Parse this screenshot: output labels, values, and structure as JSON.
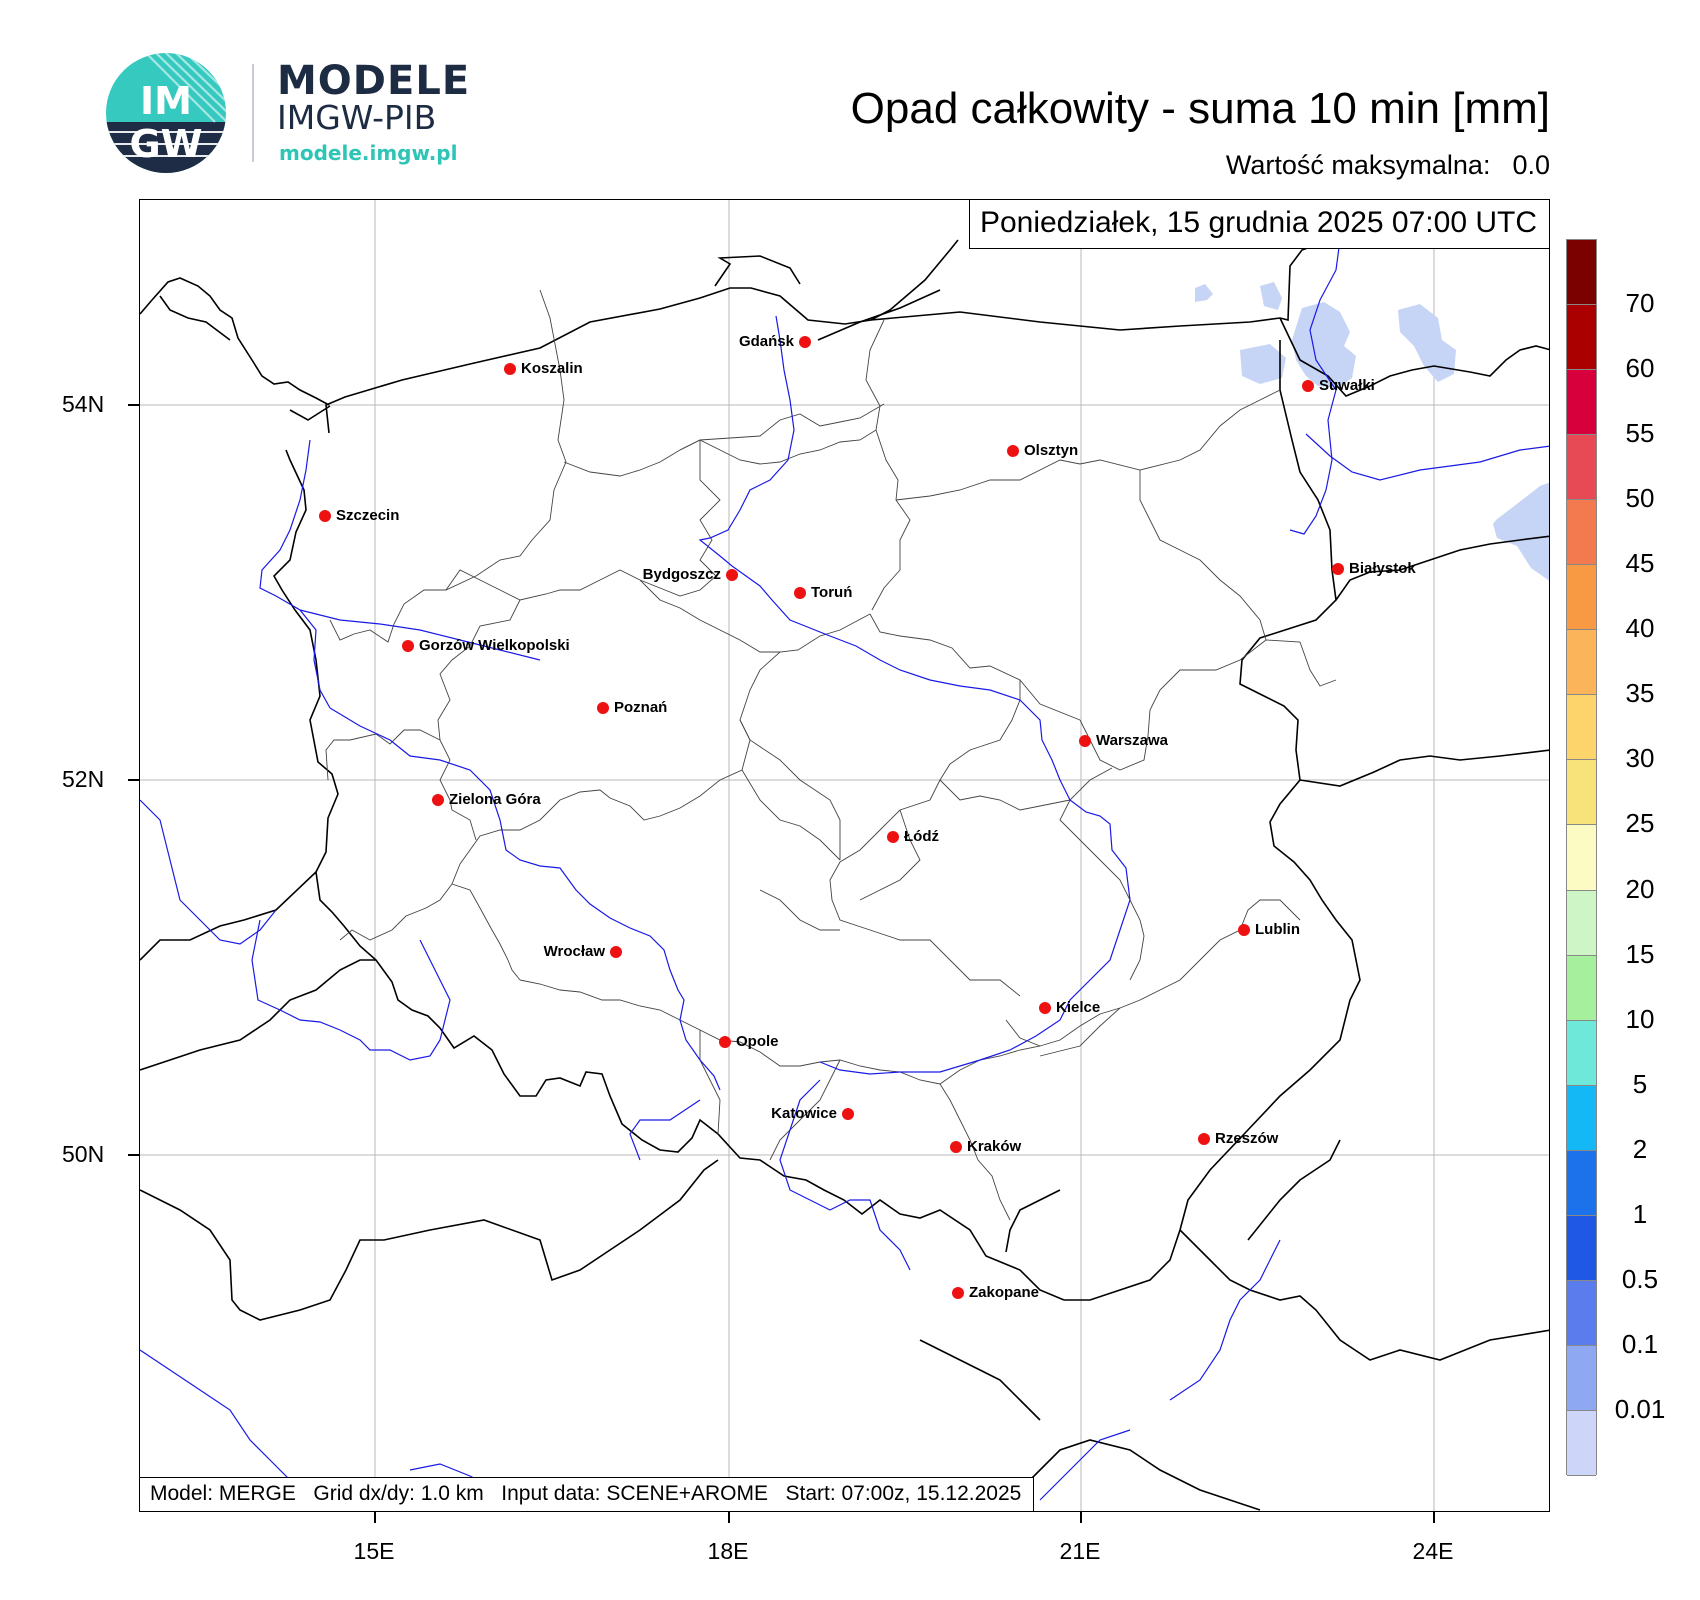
{
  "header": {
    "logo_text_top": "IM",
    "logo_text_bottom": "GW",
    "brand_title": "MODELE",
    "brand_subtitle": "IMGW-PIB",
    "brand_url": "modele.imgw.pl",
    "map_title": "Opad całkowity - suma 10 min [mm]",
    "max_label": "Wartość maksymalna:",
    "max_value": "0.0"
  },
  "map": {
    "date_time": "Poniedziałek, 15 grudnia 2025 07:00 UTC",
    "info": "Model: MERGE   Grid dx/dy: 1.0 km   Input data: SCENE+AROME   Start: 07:00z, 15.12.2025",
    "lat_labels": [
      "54N",
      "52N",
      "50N"
    ],
    "lon_labels": [
      "15E",
      "18E",
      "21E",
      "24E"
    ],
    "cities": [
      {
        "name": "Gdańsk",
        "side": "left"
      },
      {
        "name": "Koszalin",
        "side": "right"
      },
      {
        "name": "Suwałki",
        "side": "right"
      },
      {
        "name": "Olsztyn",
        "side": "right"
      },
      {
        "name": "Szczecin",
        "side": "right"
      },
      {
        "name": "Białystok",
        "side": "right"
      },
      {
        "name": "Bydgoszcz",
        "side": "left"
      },
      {
        "name": "Toruń",
        "side": "right"
      },
      {
        "name": "Gorzów Wielkopolski",
        "side": "right"
      },
      {
        "name": "Poznań",
        "side": "right"
      },
      {
        "name": "Warszawa",
        "side": "right"
      },
      {
        "name": "Zielona Góra",
        "side": "right"
      },
      {
        "name": "Łódź",
        "side": "right"
      },
      {
        "name": "Lublin",
        "side": "right"
      },
      {
        "name": "Wrocław",
        "side": "left"
      },
      {
        "name": "Kielce",
        "side": "right"
      },
      {
        "name": "Opole",
        "side": "right"
      },
      {
        "name": "Katowice",
        "side": "left"
      },
      {
        "name": "Kraków",
        "side": "right"
      },
      {
        "name": "Rzeszów",
        "side": "right"
      },
      {
        "name": "Zakopane",
        "side": "right"
      }
    ]
  },
  "colorbar": {
    "labels": [
      "70",
      "60",
      "55",
      "50",
      "45",
      "40",
      "35",
      "30",
      "25",
      "20",
      "15",
      "10",
      "5",
      "2",
      "1",
      "0.5",
      "0.1",
      "0.01"
    ],
    "colors": [
      "#7b0000",
      "#aa0000",
      "#d8003c",
      "#e84a55",
      "#f27a4e",
      "#f89a44",
      "#fbb45a",
      "#fdd36c",
      "#f8e27a",
      "#fdfbc4",
      "#cdf5c6",
      "#a6ef9d",
      "#6ee9d9",
      "#14b8f5",
      "#1c72eb",
      "#2058e6",
      "#5b7cec",
      "#8ea9f1",
      "#cdd6f8"
    ]
  },
  "colors": {
    "border": "#000000",
    "rivers": "#1a1ae6",
    "lakes": "#c6d4f5",
    "city_dot": "#ee1111",
    "brand": "#1d2b43",
    "accent": "#2ec4b6"
  }
}
